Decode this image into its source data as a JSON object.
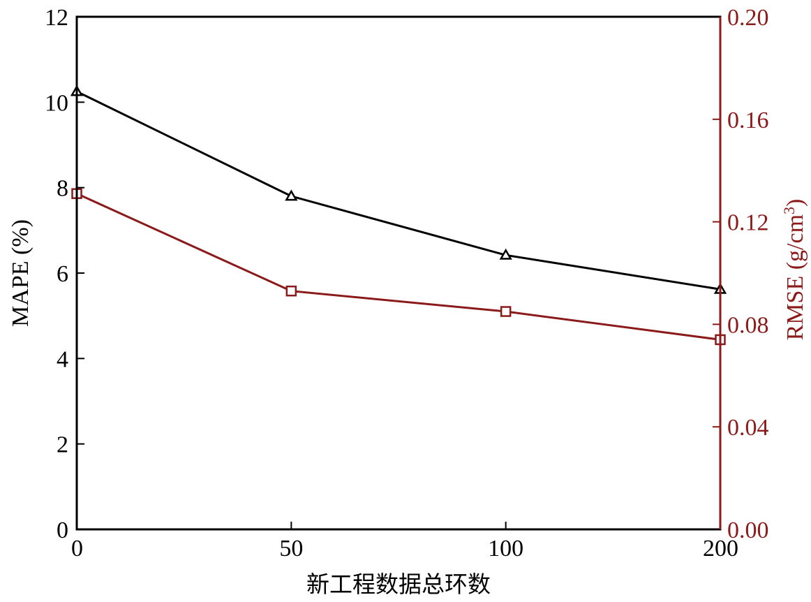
{
  "chart_data": {
    "type": "line",
    "x_categories": [
      "0",
      "50",
      "100",
      "200"
    ],
    "xlabel": "新工程数据总环数",
    "left_axis": {
      "label": "MAPE (%)",
      "ylim": [
        0,
        12
      ],
      "ticks": [
        "0",
        "2",
        "4",
        "6",
        "8",
        "10",
        "12"
      ],
      "color": "#000000"
    },
    "right_axis": {
      "label_main": "RMSE (g/cm",
      "label_sup": "3",
      "label_close": ")",
      "ylim": [
        0,
        0.2
      ],
      "ticks": [
        "0.00",
        "0.04",
        "0.08",
        "0.12",
        "0.16",
        "0.20"
      ],
      "color": "#8b1a1a"
    },
    "series": [
      {
        "axis": "left",
        "marker": "triangle",
        "color": "#000000",
        "values": [
          10.25,
          7.8,
          6.42,
          5.62
        ]
      },
      {
        "axis": "right",
        "marker": "square",
        "color": "#8b1a1a",
        "values": [
          0.131,
          0.093,
          0.085,
          0.074
        ]
      }
    ],
    "grid": false,
    "legend": "none"
  }
}
